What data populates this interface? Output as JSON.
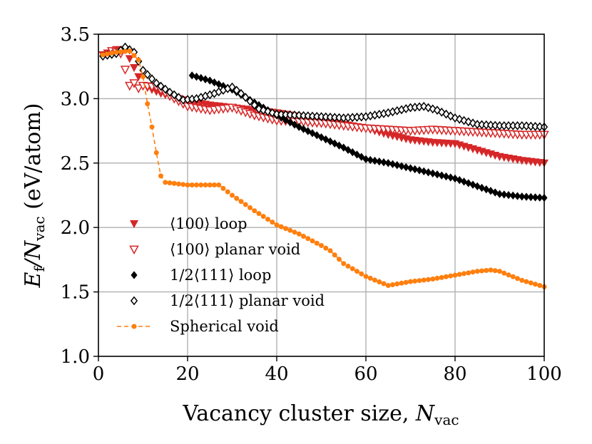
{
  "chart_data": {
    "type": "scatter",
    "xlabel": "Vacancy cluster size, ",
    "xlabel_var": "N",
    "xlabel_sub": "vac",
    "ylabel": "E",
    "ylabel_sub1": "f",
    "ylabel_mid": "/N",
    "ylabel_sub2": "vac",
    "ylabel_unit": " (eV/atom)",
    "xlim": [
      0,
      100
    ],
    "ylim": [
      1.0,
      3.5
    ],
    "xticks": [
      0,
      20,
      40,
      60,
      80,
      100
    ],
    "xtick_labels": [
      "0",
      "20",
      "40",
      "60",
      "80",
      "100"
    ],
    "yticks": [
      1.0,
      1.5,
      2.0,
      2.5,
      3.0,
      3.5
    ],
    "ytick_labels": [
      "1.0",
      "1.5",
      "2.0",
      "2.5",
      "3.0",
      "3.5"
    ],
    "grid": true,
    "legend_position": "lower-left",
    "series": [
      {
        "name": "⟨100⟩ loop",
        "color": "#d62728",
        "marker": "triangle-down-filled",
        "anchors": [
          [
            1,
            3.34
          ],
          [
            4,
            3.38
          ],
          [
            6,
            3.38
          ],
          [
            10,
            3.1
          ],
          [
            14,
            3.04
          ],
          [
            20,
            2.98
          ],
          [
            25,
            2.95
          ],
          [
            30,
            2.93
          ],
          [
            35,
            2.91
          ],
          [
            40,
            2.89
          ],
          [
            45,
            2.86
          ],
          [
            50,
            2.83
          ],
          [
            55,
            2.8
          ],
          [
            60,
            2.77
          ],
          [
            65,
            2.72
          ],
          [
            70,
            2.68
          ],
          [
            75,
            2.66
          ],
          [
            80,
            2.65
          ],
          [
            85,
            2.6
          ],
          [
            90,
            2.55
          ],
          [
            95,
            2.52
          ],
          [
            100,
            2.5
          ]
        ]
      },
      {
        "name": "⟨100⟩ planar void",
        "color": "#d62728",
        "marker": "triangle-down-open",
        "anchors": [
          [
            3,
            3.37
          ],
          [
            5,
            3.35
          ],
          [
            7,
            3.1
          ],
          [
            8,
            3.12
          ],
          [
            9,
            3.08
          ],
          [
            10,
            3.1
          ],
          [
            13,
            3.09
          ],
          [
            16,
            3.02
          ],
          [
            20,
            2.94
          ],
          [
            25,
            2.91
          ],
          [
            30,
            2.93
          ],
          [
            35,
            2.87
          ],
          [
            40,
            2.83
          ],
          [
            45,
            2.82
          ],
          [
            50,
            2.81
          ],
          [
            55,
            2.79
          ],
          [
            60,
            2.77
          ],
          [
            65,
            2.76
          ],
          [
            70,
            2.75
          ],
          [
            75,
            2.76
          ],
          [
            80,
            2.75
          ],
          [
            85,
            2.74
          ],
          [
            90,
            2.73
          ],
          [
            95,
            2.72
          ],
          [
            100,
            2.72
          ]
        ]
      },
      {
        "name": "1/2⟨111⟩ loop",
        "color": "#000000",
        "marker": "diamond-filled",
        "anchors": [
          [
            21,
            3.18
          ],
          [
            25,
            3.14
          ],
          [
            30,
            3.07
          ],
          [
            35,
            2.97
          ],
          [
            40,
            2.87
          ],
          [
            45,
            2.78
          ],
          [
            50,
            2.7
          ],
          [
            55,
            2.62
          ],
          [
            60,
            2.53
          ],
          [
            65,
            2.5
          ],
          [
            70,
            2.46
          ],
          [
            75,
            2.42
          ],
          [
            80,
            2.38
          ],
          [
            85,
            2.32
          ],
          [
            90,
            2.26
          ],
          [
            95,
            2.24
          ],
          [
            100,
            2.23
          ]
        ]
      },
      {
        "name": "1/2⟨111⟩ planar void",
        "color": "#000000",
        "marker": "diamond-open",
        "anchors": [
          [
            1,
            3.33
          ],
          [
            4,
            3.35
          ],
          [
            6,
            3.4
          ],
          [
            8,
            3.36
          ],
          [
            10,
            3.22
          ],
          [
            13,
            3.12
          ],
          [
            16,
            3.05
          ],
          [
            19,
            2.99
          ],
          [
            22,
            3.0
          ],
          [
            26,
            3.04
          ],
          [
            30,
            3.09
          ],
          [
            32,
            3.04
          ],
          [
            36,
            2.92
          ],
          [
            40,
            2.88
          ],
          [
            45,
            2.87
          ],
          [
            50,
            2.86
          ],
          [
            55,
            2.85
          ],
          [
            60,
            2.86
          ],
          [
            65,
            2.89
          ],
          [
            70,
            2.93
          ],
          [
            73,
            2.94
          ],
          [
            76,
            2.91
          ],
          [
            80,
            2.85
          ],
          [
            85,
            2.8
          ],
          [
            90,
            2.79
          ],
          [
            95,
            2.79
          ],
          [
            100,
            2.78
          ]
        ]
      },
      {
        "name": "Spherical void",
        "color": "#ff7f0e",
        "marker": "circle-filled-dashed-line",
        "anchors": [
          [
            1,
            3.34
          ],
          [
            4,
            3.36
          ],
          [
            7,
            3.37
          ],
          [
            9,
            3.3
          ],
          [
            10,
            3.17
          ],
          [
            11,
            2.96
          ],
          [
            12,
            2.78
          ],
          [
            13,
            2.58
          ],
          [
            14,
            2.4
          ],
          [
            15,
            2.35
          ],
          [
            20,
            2.33
          ],
          [
            27,
            2.33
          ],
          [
            30,
            2.25
          ],
          [
            35,
            2.13
          ],
          [
            40,
            2.02
          ],
          [
            45,
            1.95
          ],
          [
            50,
            1.86
          ],
          [
            52,
            1.82
          ],
          [
            55,
            1.72
          ],
          [
            60,
            1.62
          ],
          [
            65,
            1.55
          ],
          [
            70,
            1.58
          ],
          [
            75,
            1.6
          ],
          [
            80,
            1.63
          ],
          [
            85,
            1.66
          ],
          [
            88,
            1.67
          ],
          [
            90,
            1.66
          ],
          [
            95,
            1.59
          ],
          [
            100,
            1.54
          ]
        ]
      }
    ]
  }
}
